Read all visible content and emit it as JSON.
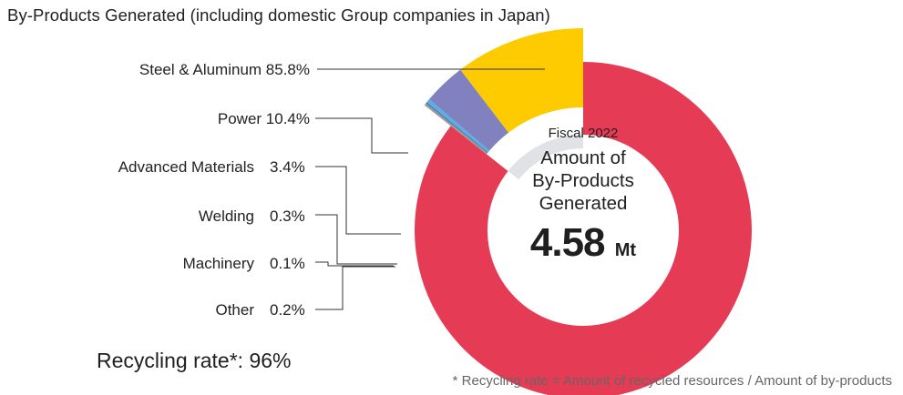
{
  "title": "By-Products Generated (including domestic Group companies in Japan)",
  "center": {
    "fiscal": "Fiscal 2022",
    "caption_lines": [
      "Amount of",
      "By-Products",
      "Generated"
    ],
    "total": "4.58",
    "unit": "Mt"
  },
  "recycling": "Recycling rate*: 96%",
  "footnote": "* Recycling rate = Amount of recycled resources / Amount of by-products",
  "chart_data": {
    "type": "pie",
    "title": "By-Products Generated (including domestic Group companies in Japan)",
    "total": 4.58,
    "total_unit": "Mt",
    "slices": [
      {
        "name": "Steel & Aluminum",
        "value": 85.8,
        "label": "Steel & Aluminum 85.8%",
        "color": "#e63b55"
      },
      {
        "name": "Power",
        "value": 10.4,
        "label": "10.4%",
        "color": "#fdcb00"
      },
      {
        "name": "Advanced Materials",
        "value": 3.4,
        "label": "3.4%",
        "color": "#8281bf"
      },
      {
        "name": "Welding",
        "value": 0.3,
        "label": "0.3%",
        "color": "#5aaee0"
      },
      {
        "name": "Machinery",
        "value": 0.1,
        "label": "0.1%",
        "color": "#3f6fb5"
      },
      {
        "name": "Other",
        "value": 0.2,
        "label": "0.2%",
        "color": "#9a9a9a"
      }
    ],
    "inner_ring_color": "#e1e2e6"
  }
}
